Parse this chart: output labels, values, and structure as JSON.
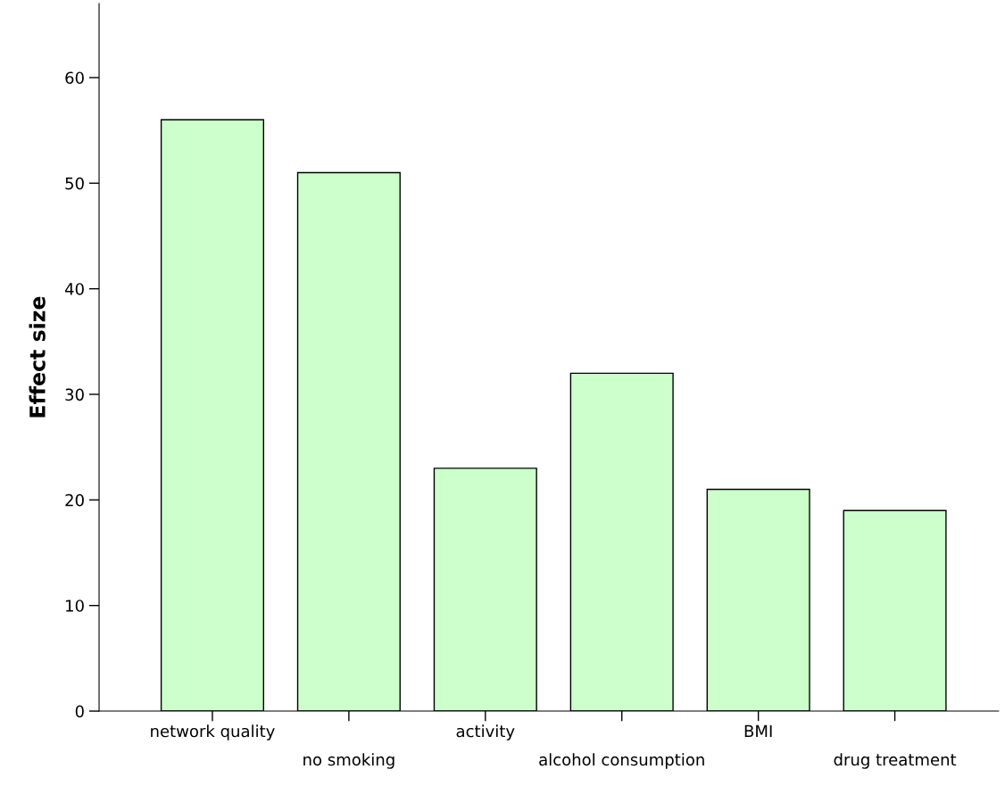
{
  "chart_data": {
    "type": "bar",
    "ylabel": "Effect size",
    "categories": [
      "network quality",
      "no smoking",
      "activity",
      "alcohol consumption",
      "BMI",
      "drug treatment"
    ],
    "values": [
      56,
      51,
      23,
      32,
      21,
      19
    ],
    "color": "#ccffcc",
    "ylim": [
      0,
      67
    ],
    "yticks": [
      0,
      10,
      20,
      30,
      40,
      50,
      60
    ],
    "grid": false,
    "legend": false
  }
}
